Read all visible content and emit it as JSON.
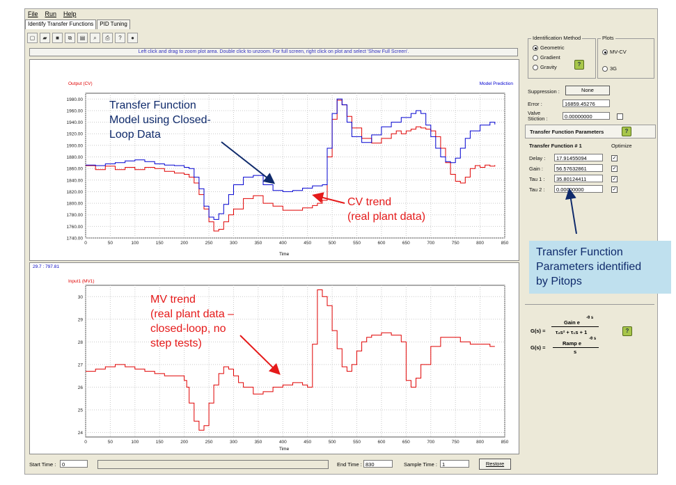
{
  "menu": [
    "File",
    "Run",
    "Help"
  ],
  "tabs": [
    "Identify Transfer Functions",
    "PID Tuning"
  ],
  "toolbar_icons": [
    "new-icon",
    "open-icon",
    "save-icon",
    "copy-icon",
    "chart-icon",
    "zoom-icon",
    "print-icon",
    "help-icon",
    "info-icon"
  ],
  "hint": "Left click and drag to zoom plot area. Double click to unzoom. For full screen, right click on plot and select 'Show Full Screen'.",
  "top_plot": {
    "left_label": "Output (CV)",
    "right_label": "Model Prediction",
    "xlabel": "Time"
  },
  "bottom_plot": {
    "coords": "29.7 : 797.81",
    "left_label": "Input1 (MV1)",
    "xlabel": "Time"
  },
  "chart_data": [
    {
      "type": "line",
      "title": "",
      "xlabel": "Time",
      "ylabel": "Output (CV)",
      "xlim": [
        0,
        850
      ],
      "ylim": [
        1740,
        1990
      ],
      "xticks": [
        0,
        50,
        100,
        150,
        200,
        250,
        300,
        350,
        400,
        450,
        500,
        550,
        600,
        650,
        700,
        750,
        800,
        850
      ],
      "yticks": [
        1740,
        1760,
        1780,
        1800,
        1820,
        1840,
        1860,
        1880,
        1900,
        1920,
        1940,
        1960,
        1980
      ],
      "series": [
        {
          "name": "Output (CV)",
          "color": "#e00000",
          "x": [
            0,
            20,
            40,
            60,
            80,
            100,
            120,
            140,
            160,
            180,
            200,
            210,
            220,
            230,
            240,
            250,
            260,
            270,
            280,
            290,
            300,
            320,
            340,
            360,
            380,
            400,
            420,
            440,
            460,
            470,
            480,
            490,
            500,
            510,
            520,
            530,
            540,
            560,
            580,
            600,
            620,
            630,
            640,
            650,
            660,
            670,
            680,
            690,
            700,
            710,
            720,
            730,
            740,
            750,
            760,
            770,
            780,
            790,
            800,
            810,
            820,
            830
          ],
          "y": [
            1865,
            1858,
            1864,
            1858,
            1862,
            1858,
            1862,
            1860,
            1855,
            1852,
            1850,
            1845,
            1835,
            1815,
            1790,
            1768,
            1752,
            1755,
            1768,
            1780,
            1790,
            1808,
            1813,
            1800,
            1795,
            1788,
            1788,
            1792,
            1796,
            1800,
            1805,
            1880,
            1945,
            1978,
            1970,
            1950,
            1930,
            1912,
            1904,
            1912,
            1920,
            1925,
            1920,
            1925,
            1928,
            1932,
            1930,
            1928,
            1925,
            1915,
            1895,
            1870,
            1850,
            1838,
            1835,
            1845,
            1860,
            1865,
            1862,
            1866,
            1864,
            1866
          ]
        },
        {
          "name": "Model Prediction",
          "color": "#0000d0",
          "x": [
            0,
            20,
            40,
            60,
            80,
            100,
            120,
            140,
            160,
            180,
            200,
            210,
            220,
            230,
            240,
            250,
            260,
            270,
            280,
            290,
            300,
            320,
            340,
            360,
            380,
            400,
            420,
            440,
            460,
            470,
            480,
            490,
            500,
            510,
            520,
            530,
            540,
            560,
            580,
            600,
            620,
            640,
            660,
            670,
            680,
            690,
            700,
            710,
            720,
            730,
            740,
            750,
            760,
            770,
            780,
            800,
            820,
            830
          ],
          "y": [
            1866,
            1865,
            1868,
            1870,
            1873,
            1875,
            1872,
            1868,
            1866,
            1865,
            1862,
            1860,
            1845,
            1825,
            1795,
            1776,
            1772,
            1782,
            1798,
            1815,
            1832,
            1845,
            1848,
            1832,
            1822,
            1820,
            1822,
            1826,
            1830,
            1830,
            1832,
            1895,
            1955,
            1980,
            1970,
            1940,
            1915,
            1905,
            1918,
            1932,
            1940,
            1948,
            1955,
            1960,
            1955,
            1935,
            1915,
            1895,
            1880,
            1872,
            1870,
            1878,
            1895,
            1912,
            1925,
            1935,
            1940,
            1936
          ]
        }
      ]
    },
    {
      "type": "line",
      "title": "",
      "xlabel": "Time",
      "ylabel": "Input1 (MV1)",
      "xlim": [
        0,
        850
      ],
      "ylim": [
        23.8,
        30.5
      ],
      "xticks": [
        0,
        50,
        100,
        150,
        200,
        250,
        300,
        350,
        400,
        450,
        500,
        550,
        600,
        650,
        700,
        750,
        800,
        850
      ],
      "yticks": [
        24,
        25,
        26,
        27,
        28,
        29,
        30
      ],
      "series": [
        {
          "name": "Input1 (MV1)",
          "color": "#e00000",
          "x": [
            0,
            20,
            40,
            60,
            80,
            100,
            120,
            140,
            160,
            180,
            200,
            205,
            210,
            220,
            230,
            240,
            250,
            260,
            270,
            280,
            290,
            300,
            310,
            320,
            340,
            360,
            380,
            400,
            420,
            440,
            450,
            460,
            470,
            480,
            490,
            500,
            510,
            520,
            530,
            540,
            550,
            560,
            570,
            580,
            600,
            620,
            640,
            650,
            660,
            670,
            680,
            700,
            720,
            740,
            760,
            780,
            800,
            820,
            830
          ],
          "y": [
            26.7,
            26.8,
            26.9,
            27.0,
            26.9,
            26.8,
            26.7,
            26.6,
            26.5,
            26.5,
            26.3,
            26.0,
            25.3,
            24.5,
            24.1,
            24.3,
            25.3,
            26.1,
            26.6,
            26.9,
            26.8,
            26.5,
            26.2,
            26.0,
            25.7,
            25.8,
            26.0,
            26.1,
            26.2,
            26.1,
            26.0,
            27.9,
            30.3,
            30.0,
            29.6,
            28.5,
            27.7,
            26.9,
            26.7,
            27.0,
            27.6,
            28.0,
            28.2,
            28.3,
            28.4,
            28.3,
            28.0,
            26.3,
            26.0,
            26.4,
            27.0,
            27.8,
            28.2,
            28.2,
            28.0,
            27.9,
            27.9,
            27.8,
            27.8
          ]
        }
      ]
    }
  ],
  "right_panel": {
    "id_method_title": "Identification Method",
    "id_methods": [
      {
        "label": "Geometric",
        "selected": true
      },
      {
        "label": "Gradient",
        "selected": false
      },
      {
        "label": "Gravity",
        "selected": false
      }
    ],
    "plots_title": "Plots",
    "plots": [
      {
        "label": "MV-CV",
        "selected": true
      },
      {
        "label": "3G",
        "selected": false
      }
    ],
    "suppression_label": "Suppression :",
    "suppression_value": "None",
    "error_label": "Error :",
    "error_value": "16859.45276",
    "valve_label": "Valve Stiction :",
    "valve_value": "0.00000000",
    "tf_params_title": "Transfer Function Parameters",
    "tf_heading": "Transfer Function # 1",
    "optimize_label": "Optimize",
    "params": [
      {
        "label": "Delay :",
        "value": "17.91455094",
        "checked": true
      },
      {
        "label": "Gain :",
        "value": "56.57632861",
        "checked": true
      },
      {
        "label": "Tau 1 :",
        "value": "35.80124411",
        "checked": true
      },
      {
        "label": "Tau 2 :",
        "value": "0.00000000",
        "checked": true
      }
    ],
    "formula1_lhs": "G(s) =",
    "formula1_num": "Gain e",
    "formula1_exp": "-θ s",
    "formula1_den": "τ₂s² + τ₁s + 1",
    "formula2_lhs": "G(s) =",
    "formula2_num": "Ramp  e",
    "formula2_exp": "-θ s",
    "formula2_den": "s"
  },
  "bottom_bar": {
    "start_label": "Start Time :",
    "start_value": "0",
    "end_label": "End Time :",
    "end_value": "830",
    "sample_label": "Sample Time :",
    "sample_value": "1",
    "restore_label": "Restore"
  },
  "annotations": {
    "tf_model": [
      "Transfer Function",
      "Model using Closed-",
      "Loop Data"
    ],
    "cv_trend": [
      "CV trend",
      "(real plant data)"
    ],
    "mv_trend": [
      "MV trend",
      "(real plant data –",
      "closed-loop, no",
      "step tests)"
    ],
    "tf_params": [
      "Transfer Function",
      "Parameters identified",
      "by Pitops"
    ],
    "colors": {
      "navy": "#0f2a6b",
      "red": "#e51a1a",
      "callout_bg": "#bfe0ee"
    }
  }
}
